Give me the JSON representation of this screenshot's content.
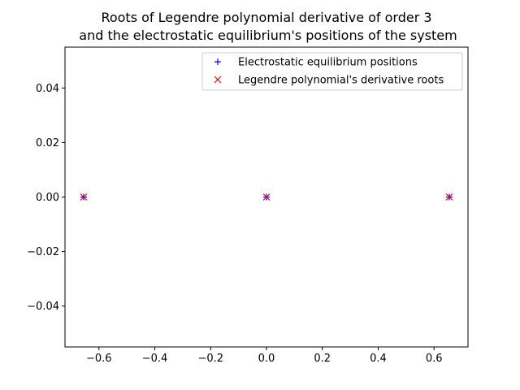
{
  "chart_data": {
    "type": "scatter",
    "title": "Roots of Legendre polynomial derivative of order 3",
    "subtitle": "and the electrostatic equilibrium's positions of the system",
    "xlabel": "",
    "ylabel": "",
    "xlim": [
      -0.7216,
      0.7216
    ],
    "ylim": [
      -0.055,
      0.055
    ],
    "xticks": [
      -0.6,
      -0.4,
      -0.2,
      0.0,
      0.2,
      0.4,
      0.6
    ],
    "xtick_labels": [
      "−0.6",
      "−0.4",
      "−0.2",
      "0.0",
      "0.2",
      "0.4",
      "0.6"
    ],
    "yticks": [
      0.04,
      0.02,
      0.0,
      -0.02,
      -0.04
    ],
    "ytick_labels": [
      "0.04",
      "0.02",
      "0.00",
      "−0.02",
      "−0.04"
    ],
    "grid": false,
    "legend_position": "top-right",
    "series": [
      {
        "name": "Electrostatic equilibrium positions",
        "marker": "+",
        "color": "#0000ff",
        "x": [
          -0.6547,
          0.0,
          0.6547
        ],
        "y": [
          0.0,
          0.0,
          0.0
        ]
      },
      {
        "name": "Legendre polynomial's derivative roots",
        "marker": "x",
        "color": "#ff0000",
        "x": [
          -0.6547,
          0.0,
          0.6547
        ],
        "y": [
          0.0,
          0.0,
          0.0
        ]
      }
    ]
  }
}
